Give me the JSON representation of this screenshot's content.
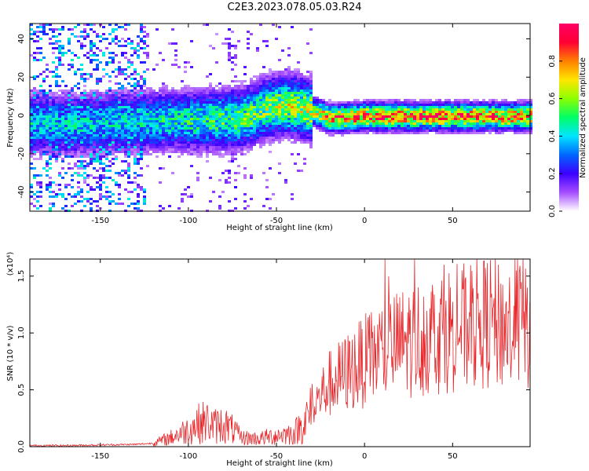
{
  "title": "C2E3.2023.078.05.03.R24",
  "chart_data": [
    {
      "type": "heatmap",
      "xlabel": "Height of straight line (km)",
      "ylabel": "Frequency (Hz)",
      "xlim": [
        -190,
        94
      ],
      "ylim": [
        -50,
        48
      ],
      "x_ticks": [
        -150,
        -100,
        -50,
        0,
        50
      ],
      "y_ticks": [
        -40,
        -20,
        0,
        20,
        40
      ],
      "colorbar": {
        "label": "Normalized spectral amplitude",
        "range": [
          0,
          1
        ],
        "ticks": [
          "0.0",
          "0.2",
          "0.4",
          "0.6",
          "0.8"
        ],
        "colors": [
          "#ffffff",
          "#a64dff",
          "#3b00ff",
          "#0066ff",
          "#00e5ff",
          "#00ff66",
          "#8cff00",
          "#ffe600",
          "#ff8000",
          "#ff0033",
          "#ff0066"
        ]
      },
      "ridge": {
        "description_points_x": [
          -165,
          -140,
          -110,
          -90,
          -70,
          -55,
          -45,
          -35,
          -28,
          -20,
          0,
          50,
          94
        ],
        "center_freq": [
          -4,
          -3,
          -2,
          -2,
          -1,
          5,
          6,
          4,
          2,
          -1,
          0,
          0,
          0
        ],
        "peak_amplitude": [
          0.45,
          0.45,
          0.5,
          0.55,
          0.6,
          0.65,
          0.7,
          0.7,
          0.75,
          0.9,
          0.95,
          0.95,
          0.9
        ]
      }
    },
    {
      "type": "line",
      "xlabel": "Height of straight line (km)",
      "ylabel": "SNR (10 * v/v)",
      "y_multiplier": "(x10⁴)",
      "xlim": [
        -190,
        94
      ],
      "ylim": [
        0,
        1.65
      ],
      "x_ticks": [
        -150,
        -100,
        -50,
        0,
        50
      ],
      "y_ticks": [
        "0.0",
        "0.5",
        "1.0",
        "1.5"
      ],
      "line_color": "#e8262a",
      "series": [
        {
          "x": [
            -190,
            -170,
            -150,
            -130,
            -120,
            -110,
            -100,
            -95,
            -90,
            -85,
            -80,
            -75,
            -70,
            -60,
            -50,
            -40,
            -35,
            -30,
            -25,
            -20,
            -15,
            -10,
            -5,
            0,
            10,
            20,
            30,
            40,
            50,
            60,
            70,
            80,
            90,
            94
          ],
          "y": [
            0.01,
            0.01,
            0.015,
            0.02,
            0.03,
            0.08,
            0.15,
            0.2,
            0.22,
            0.18,
            0.2,
            0.15,
            0.08,
            0.07,
            0.1,
            0.12,
            0.2,
            0.3,
            0.45,
            0.55,
            0.6,
            0.65,
            0.7,
            0.75,
            0.85,
            0.9,
            0.95,
            1.0,
            1.05,
            1.05,
            1.1,
            1.05,
            1.1,
            1.05
          ]
        }
      ]
    }
  ]
}
